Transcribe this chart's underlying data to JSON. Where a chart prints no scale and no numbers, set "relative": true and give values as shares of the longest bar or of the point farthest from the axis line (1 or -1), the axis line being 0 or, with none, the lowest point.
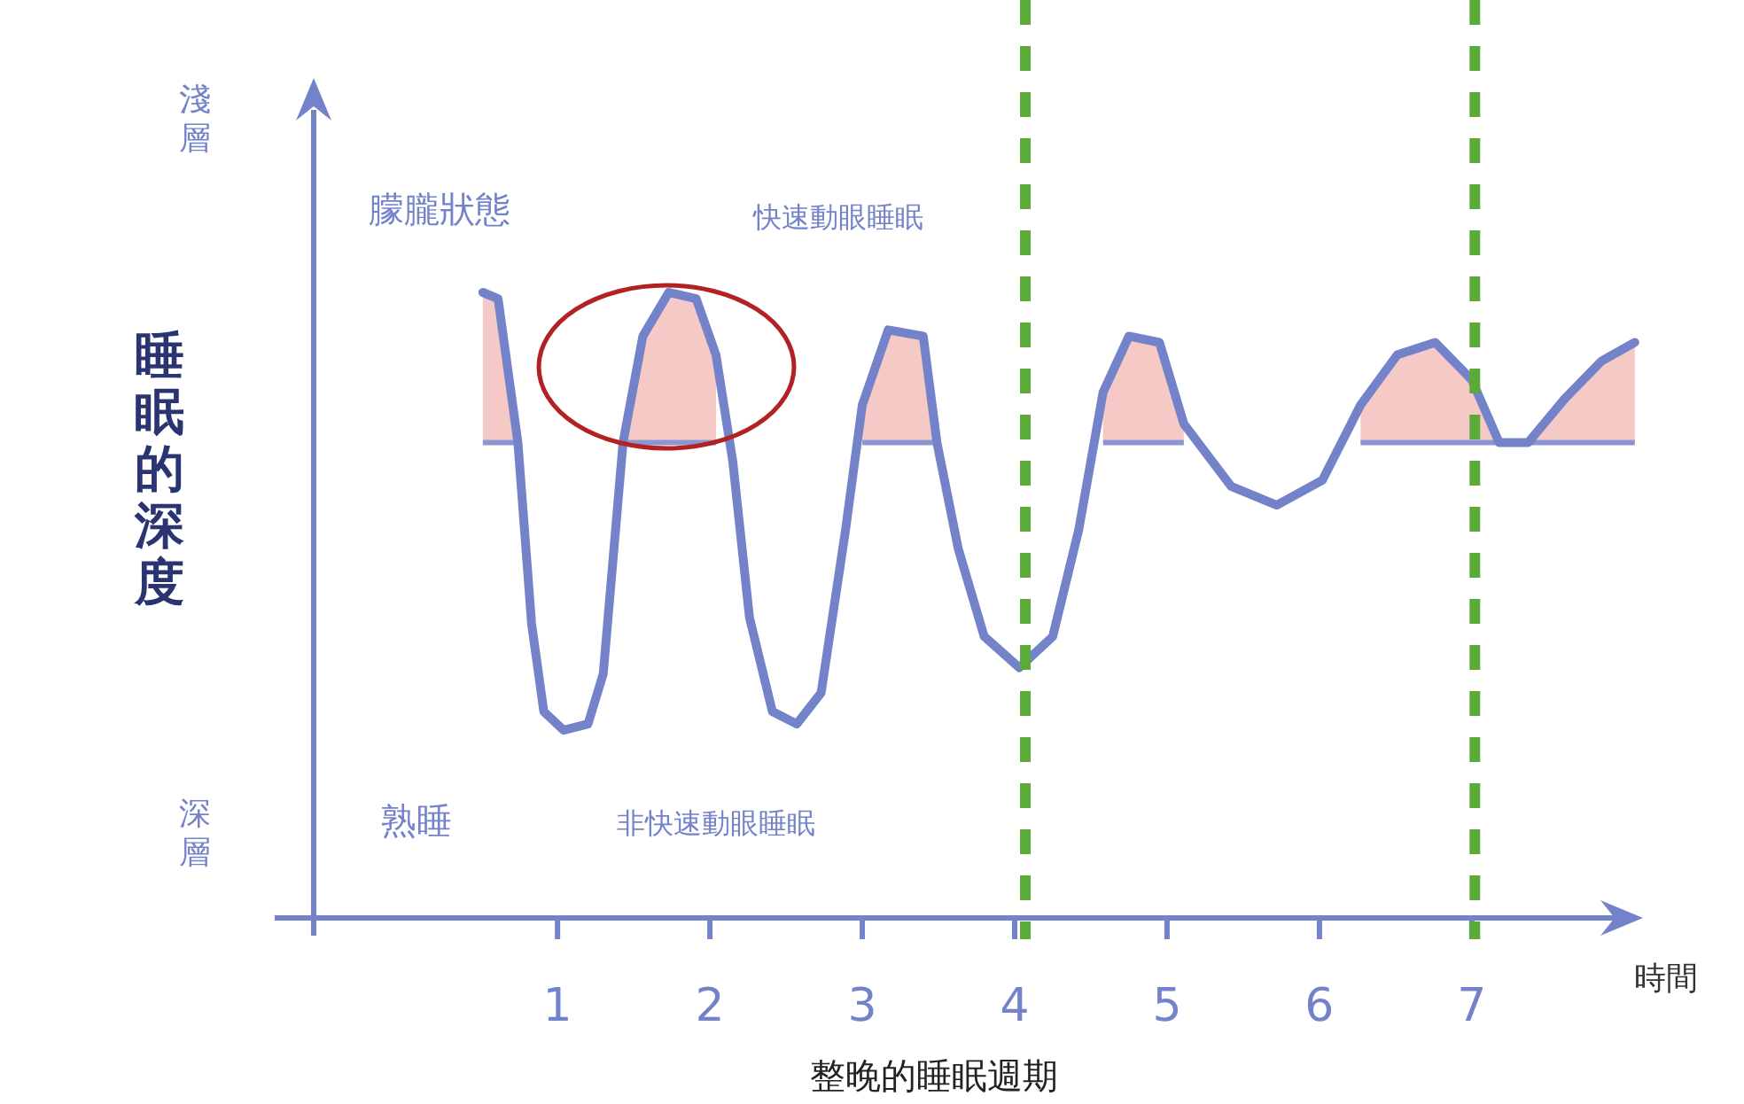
{
  "chart_data": {
    "type": "line",
    "relative": true,
    "title": "整晚的睡眠週期",
    "xlabel": "時間",
    "ylabel": "睡眠的深度",
    "xlim": [
      -0.6,
      8.1
    ],
    "xticks": [
      1,
      2,
      3,
      4,
      5,
      6,
      7
    ],
    "series": [
      {
        "color": "#7483c9",
        "x": [
          0.51,
          0.61,
          0.74,
          0.83,
          0.91,
          1.04,
          1.2,
          1.3,
          1.43,
          1.56,
          1.73,
          1.91,
          2.04,
          2.15,
          2.26,
          2.41,
          2.57,
          2.73,
          2.89,
          3.0,
          3.17,
          3.4,
          3.49,
          3.63,
          3.8,
          4.03,
          4.25,
          4.42,
          4.58,
          4.75,
          4.95,
          5.11,
          5.42,
          5.72,
          6.02,
          6.27,
          6.51,
          6.76,
          7.0,
          7.18,
          7.37,
          7.61,
          7.85,
          8.07
        ],
        "values": [
          1.0,
          0.99,
          0.76,
          0.47,
          0.33,
          0.3,
          0.31,
          0.39,
          0.76,
          0.93,
          1.0,
          0.99,
          0.9,
          0.73,
          0.48,
          0.33,
          0.31,
          0.36,
          0.62,
          0.82,
          0.94,
          0.93,
          0.76,
          0.59,
          0.45,
          0.4,
          0.45,
          0.62,
          0.84,
          0.93,
          0.92,
          0.79,
          0.69,
          0.66,
          0.7,
          0.82,
          0.9,
          0.92,
          0.86,
          0.76,
          0.76,
          0.83,
          0.89,
          0.92
        ]
      }
    ],
    "ref_lines": [
      {
        "axis": "x",
        "value": 4.07,
        "color": "#5aab3a",
        "line_style": "dashed"
      },
      {
        "axis": "x",
        "value": 7.02,
        "color": "#5aab3a",
        "line_style": "dashed"
      }
    ],
    "annotations": [
      "淺層",
      "深層",
      "朦朧狀態",
      "快速動眼睡眠",
      "熟睡",
      "非快速動眼睡眠"
    ]
  }
}
